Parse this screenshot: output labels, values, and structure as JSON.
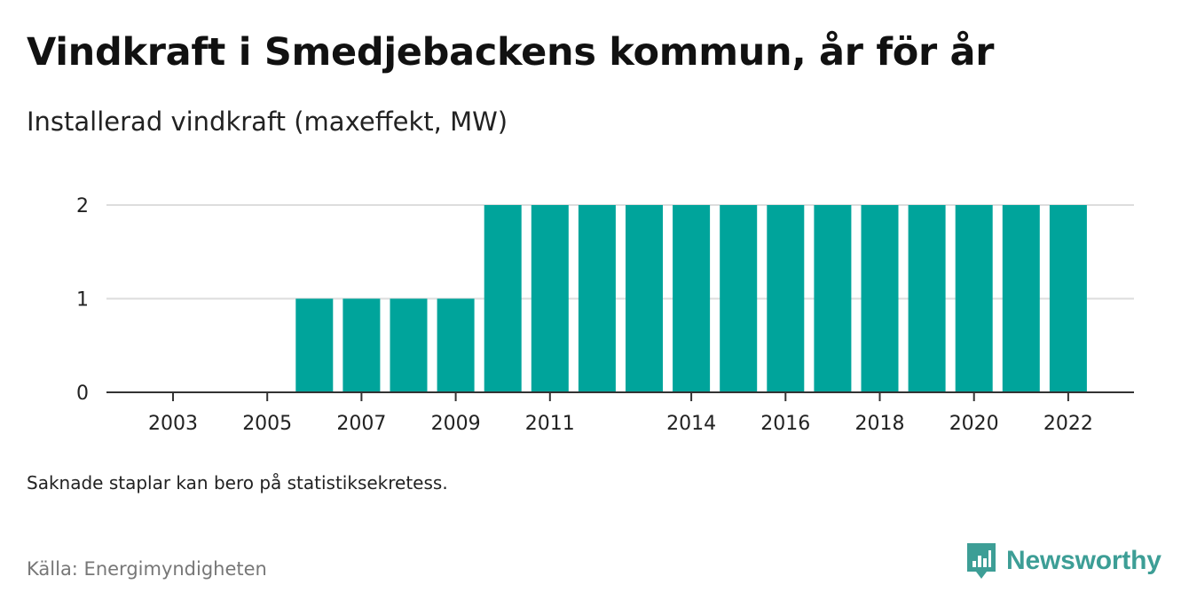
{
  "title": "Vindkraft i Smedjebackens kommun, år för år",
  "subtitle": "Installerad vindkraft (maxeffekt, MW)",
  "note": "Saknade staplar kan bero på statistiksekretess.",
  "source": "Källa: Energimyndigheten",
  "logo": {
    "text": "Newsworthy",
    "icon": "newsworthy-logo-icon"
  },
  "colors": {
    "bar": "#00a49b",
    "grid": "#dddddd",
    "axis": "#333333",
    "logo": "#3d9e96"
  },
  "chart_data": {
    "type": "bar",
    "categories": [
      2003,
      2004,
      2005,
      2006,
      2007,
      2008,
      2009,
      2010,
      2011,
      2012,
      2013,
      2014,
      2015,
      2016,
      2017,
      2018,
      2019,
      2020,
      2021,
      2022
    ],
    "values": [
      0,
      0,
      0,
      1,
      1,
      1,
      1,
      2,
      2,
      2,
      2,
      2,
      2,
      2,
      2,
      2,
      2,
      2,
      2,
      2
    ],
    "x_tick_labels": [
      2003,
      2005,
      2007,
      2009,
      2011,
      2014,
      2016,
      2018,
      2020,
      2022
    ],
    "y_ticks": [
      0,
      1,
      2
    ],
    "ylim": [
      0,
      2
    ],
    "grid": true,
    "legend": "none"
  }
}
